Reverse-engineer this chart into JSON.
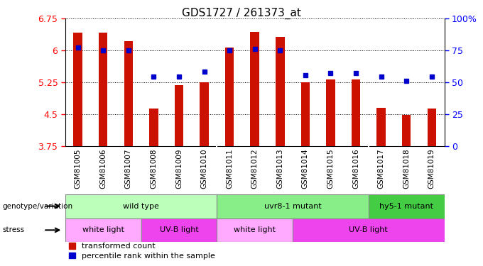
{
  "title": "GDS1727 / 261373_at",
  "samples": [
    "GSM81005",
    "GSM81006",
    "GSM81007",
    "GSM81008",
    "GSM81009",
    "GSM81010",
    "GSM81011",
    "GSM81012",
    "GSM81013",
    "GSM81014",
    "GSM81015",
    "GSM81016",
    "GSM81017",
    "GSM81018",
    "GSM81019"
  ],
  "bar_values": [
    6.42,
    6.42,
    6.22,
    4.63,
    5.18,
    5.25,
    6.07,
    6.43,
    6.32,
    5.26,
    5.32,
    5.32,
    4.65,
    4.48,
    4.63
  ],
  "dot_values_left": [
    6.07,
    6.01,
    6.0,
    5.38,
    5.38,
    5.5,
    6.0,
    6.03,
    6.0,
    5.42,
    5.47,
    5.47,
    5.38,
    5.28,
    5.38
  ],
  "ylim_left": [
    3.75,
    6.75
  ],
  "yticks_left": [
    3.75,
    4.5,
    5.25,
    6.0,
    6.75
  ],
  "ytick_labels_left": [
    "3.75",
    "4.5",
    "5.25",
    "6",
    "6.75"
  ],
  "ylim_right": [
    0,
    100
  ],
  "yticks_right": [
    0,
    25,
    50,
    75,
    100
  ],
  "ytick_labels_right": [
    "0",
    "25",
    "50",
    "75",
    "100%"
  ],
  "bar_color": "#cc1100",
  "dot_color": "#0000cc",
  "plot_bg": "#ffffff",
  "xtick_bg": "#d0d0d0",
  "genotype_groups": [
    {
      "label": "wild type",
      "start": 0,
      "end": 6,
      "color": "#bbffbb"
    },
    {
      "label": "uvr8-1 mutant",
      "start": 6,
      "end": 12,
      "color": "#88ee88"
    },
    {
      "label": "hy5-1 mutant",
      "start": 12,
      "end": 15,
      "color": "#44cc44"
    }
  ],
  "stress_groups": [
    {
      "label": "white light",
      "start": 0,
      "end": 3,
      "color": "#ffaaff"
    },
    {
      "label": "UV-B light",
      "start": 3,
      "end": 6,
      "color": "#ee44ee"
    },
    {
      "label": "white light",
      "start": 6,
      "end": 9,
      "color": "#ffaaff"
    },
    {
      "label": "UV-B light",
      "start": 9,
      "end": 15,
      "color": "#ee44ee"
    }
  ]
}
